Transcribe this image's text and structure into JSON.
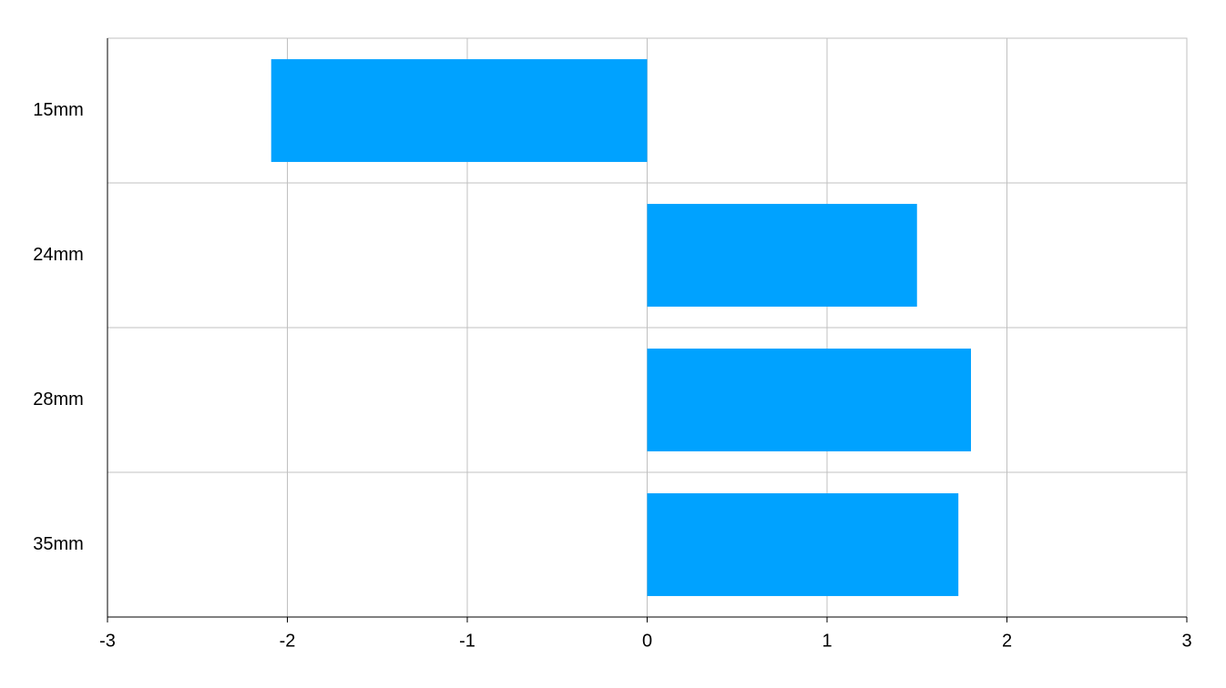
{
  "chart_data": {
    "type": "bar",
    "orientation": "horizontal",
    "categories": [
      "15mm",
      "24mm",
      "28mm",
      "35mm"
    ],
    "values": [
      -2.09,
      1.5,
      1.8,
      1.73
    ],
    "color": "#00a2ff",
    "xlim": [
      -3,
      3
    ],
    "xticks": [
      -3,
      -2,
      -1,
      0,
      1,
      2,
      3
    ],
    "grid": true
  }
}
